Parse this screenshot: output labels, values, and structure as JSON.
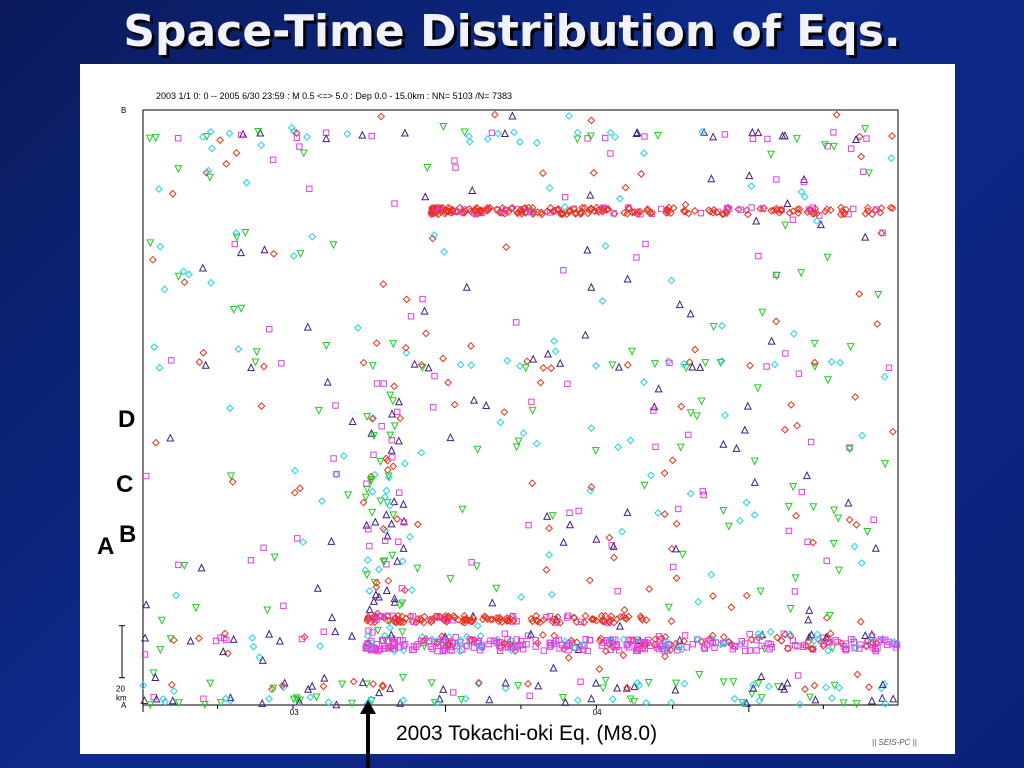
{
  "slide": {
    "title": "Space-Time Distribution of Eqs.",
    "caption": "2003 Tokachi-oki Eq. (M8.0)",
    "watermark": "|| SEIS-PC ||"
  },
  "colors": {
    "background": "#0d2a8a",
    "diamond_red": "#e8321e",
    "square_magenta": "#e040e0",
    "diamond_cyan": "#20d0e8",
    "triangle_green": "#20cc20",
    "triangle_purple": "#402080"
  },
  "chart_data": {
    "type": "scatter",
    "header": "2003 1/1  0: 0 -- 2005 6/30 23:59  : M 0.5 <=> 5.0   : Dep 0.0 - 15.0km : NN= 5103 /N= 7383",
    "xlabel": "",
    "ylabel": "",
    "x_range": [
      "2003-01-01",
      "2005-06-30"
    ],
    "x_ticks": [
      "03",
      "04"
    ],
    "y_end_labels": {
      "top": "B",
      "bottom": "A"
    },
    "scale_bar": {
      "label": "20 km",
      "km": 20
    },
    "profile_labels": [
      "D",
      "C",
      "B",
      "A"
    ],
    "mainshock": {
      "date": "2003-09-26",
      "label": "2003 Tokachi-oki Eq. (M8.0)"
    },
    "clusters": [
      {
        "name": "",
        "distance_km": 190,
        "start": "2003-12-15",
        "end": "2005-06-30"
      },
      {
        "name": "C",
        "distance_km": 33,
        "start": "2003-09-26",
        "end": "2004-08-31"
      },
      {
        "name": "B",
        "distance_km": 23,
        "start": "2003-09-26",
        "end": "2005-06-30"
      }
    ],
    "markers": [
      {
        "symbol": "diamond",
        "color": "#e8321e"
      },
      {
        "symbol": "square",
        "color": "#e040e0"
      },
      {
        "symbol": "diamond",
        "color": "#20d0e8"
      },
      {
        "symbol": "inverted-triangle",
        "color": "#20cc20"
      },
      {
        "symbol": "triangle",
        "color": "#402080"
      }
    ],
    "grid": false
  }
}
